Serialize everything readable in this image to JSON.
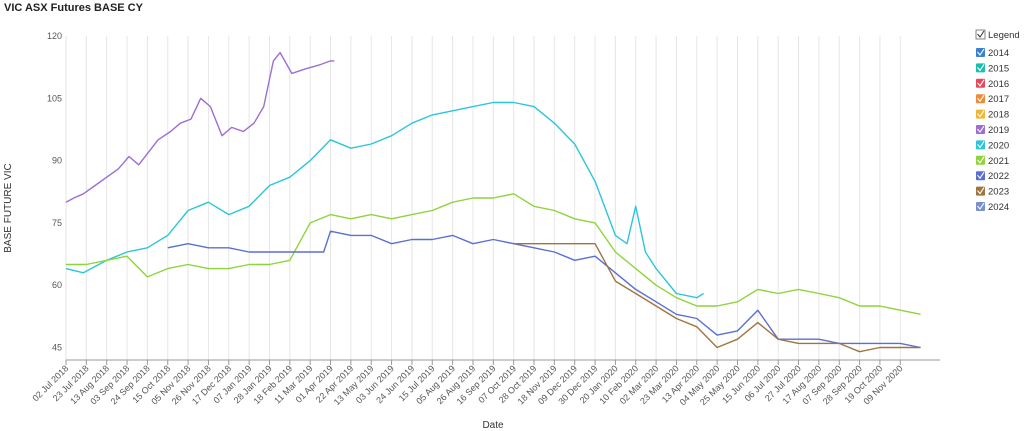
{
  "chart_data": {
    "type": "line",
    "title": "VIC ASX Futures BASE CY",
    "xlabel": "Date",
    "ylabel": "BASE FUTURE VIC",
    "xlim": [
      "2018-07-02",
      "2020-12-20"
    ],
    "ylim": [
      42,
      120
    ],
    "y_ticks": [
      45,
      60,
      75,
      90,
      105,
      120
    ],
    "x_tick_labels": [
      "02 Jul 2018",
      "23 Jul 2018",
      "13 Aug 2018",
      "03 Sep 2018",
      "24 Sep 2018",
      "15 Oct 2018",
      "05 Nov 2018",
      "26 Nov 2018",
      "17 Dec 2018",
      "07 Jan 2019",
      "28 Jan 2019",
      "18 Feb 2019",
      "11 Mar 2019",
      "01 Apr 2019",
      "22 Apr 2019",
      "13 May 2019",
      "03 Jun 2019",
      "24 Jun 2019",
      "15 Jul 2019",
      "05 Aug 2019",
      "26 Aug 2019",
      "16 Sep 2019",
      "07 Oct 2019",
      "28 Oct 2019",
      "18 Nov 2019",
      "09 Dec 2019",
      "30 Dec 2019",
      "20 Jan 2020",
      "10 Feb 2020",
      "02 Mar 2020",
      "23 Mar 2020",
      "13 Apr 2020",
      "04 May 2020",
      "25 May 2020",
      "15 Jun 2020",
      "06 Jul 2020",
      "27 Jul 2020",
      "17 Aug 2020",
      "07 Sep 2020",
      "28 Sep 2020",
      "19 Oct 2020",
      "09 Nov 2020"
    ],
    "x_tick_dates": [
      "2018-07-02",
      "2018-07-23",
      "2018-08-13",
      "2018-09-03",
      "2018-09-24",
      "2018-10-15",
      "2018-11-05",
      "2018-11-26",
      "2018-12-17",
      "2019-01-07",
      "2019-01-28",
      "2019-02-18",
      "2019-03-11",
      "2019-04-01",
      "2019-04-22",
      "2019-05-13",
      "2019-06-03",
      "2019-06-24",
      "2019-07-15",
      "2019-08-05",
      "2019-08-26",
      "2019-09-16",
      "2019-10-07",
      "2019-10-28",
      "2019-11-18",
      "2019-12-09",
      "2019-12-30",
      "2020-01-20",
      "2020-02-10",
      "2020-03-02",
      "2020-03-23",
      "2020-04-13",
      "2020-05-04",
      "2020-05-25",
      "2020-06-15",
      "2020-07-06",
      "2020-07-27",
      "2020-08-17",
      "2020-09-07",
      "2020-09-28",
      "2020-10-19",
      "2020-11-09"
    ],
    "grid": "vertical",
    "legend": {
      "title": "Legend",
      "placement": "right"
    },
    "series": [
      {
        "name": "2014",
        "color": "#3a7fd0",
        "x": [],
        "y": []
      },
      {
        "name": "2015",
        "color": "#1bbfb0",
        "x": [],
        "y": []
      },
      {
        "name": "2016",
        "color": "#e8485a",
        "x": [],
        "y": []
      },
      {
        "name": "2017",
        "color": "#f08a3c",
        "x": [],
        "y": []
      },
      {
        "name": "2018",
        "color": "#f2b632",
        "x": [],
        "y": []
      },
      {
        "name": "2019",
        "color": "#9b6fd1",
        "x": [
          "2018-07-02",
          "2018-07-10",
          "2018-07-20",
          "2018-08-01",
          "2018-08-13",
          "2018-08-25",
          "2018-09-05",
          "2018-09-15",
          "2018-09-25",
          "2018-10-05",
          "2018-10-18",
          "2018-10-28",
          "2018-11-08",
          "2018-11-18",
          "2018-11-28",
          "2018-12-10",
          "2018-12-20",
          "2019-01-01",
          "2019-01-12",
          "2019-01-22",
          "2019-02-01",
          "2019-02-08",
          "2019-02-20",
          "2019-03-05",
          "2019-03-20",
          "2019-04-01",
          "2019-04-05"
        ],
        "y": [
          80,
          81,
          82,
          84,
          86,
          88,
          91,
          89,
          92,
          95,
          97,
          99,
          100,
          105,
          103,
          96,
          98,
          97,
          99,
          103,
          114,
          116,
          111,
          112,
          113,
          114,
          114
        ]
      },
      {
        "name": "2020",
        "color": "#2cc6d8",
        "x": [
          "2018-07-02",
          "2018-07-20",
          "2018-08-13",
          "2018-09-03",
          "2018-09-24",
          "2018-10-15",
          "2018-11-05",
          "2018-11-26",
          "2018-12-17",
          "2019-01-07",
          "2019-01-28",
          "2019-02-18",
          "2019-03-11",
          "2019-04-01",
          "2019-04-22",
          "2019-05-13",
          "2019-06-03",
          "2019-06-24",
          "2019-07-15",
          "2019-08-05",
          "2019-08-26",
          "2019-09-16",
          "2019-10-07",
          "2019-10-28",
          "2019-11-18",
          "2019-12-09",
          "2019-12-30",
          "2020-01-20",
          "2020-02-01",
          "2020-02-10",
          "2020-02-20",
          "2020-03-02",
          "2020-03-23",
          "2020-04-13",
          "2020-04-20"
        ],
        "y": [
          64,
          63,
          66,
          68,
          69,
          72,
          78,
          80,
          77,
          79,
          84,
          86,
          90,
          95,
          93,
          94,
          96,
          99,
          101,
          102,
          103,
          104,
          104,
          103,
          99,
          94,
          85,
          72,
          70,
          79,
          68,
          64,
          58,
          57,
          58
        ]
      },
      {
        "name": "2021",
        "color": "#8ed43c",
        "x": [
          "2018-07-02",
          "2018-07-23",
          "2018-08-13",
          "2018-09-03",
          "2018-09-24",
          "2018-10-15",
          "2018-11-05",
          "2018-11-26",
          "2018-12-17",
          "2019-01-07",
          "2019-01-28",
          "2019-02-18",
          "2019-03-11",
          "2019-04-01",
          "2019-04-22",
          "2019-05-13",
          "2019-06-03",
          "2019-06-24",
          "2019-07-15",
          "2019-08-05",
          "2019-08-26",
          "2019-09-16",
          "2019-10-07",
          "2019-10-28",
          "2019-11-18",
          "2019-12-09",
          "2019-12-30",
          "2020-01-20",
          "2020-02-10",
          "2020-03-02",
          "2020-03-23",
          "2020-04-13",
          "2020-05-04",
          "2020-05-25",
          "2020-06-15",
          "2020-07-06",
          "2020-07-27",
          "2020-08-17",
          "2020-09-07",
          "2020-09-28",
          "2020-10-19",
          "2020-11-09",
          "2020-11-30"
        ],
        "y": [
          65,
          65,
          66,
          67,
          62,
          64,
          65,
          64,
          64,
          65,
          65,
          66,
          75,
          77,
          76,
          77,
          76,
          77,
          78,
          80,
          81,
          81,
          82,
          79,
          78,
          76,
          75,
          68,
          64,
          60,
          57,
          55,
          55,
          56,
          59,
          58,
          59,
          58,
          57,
          55,
          55,
          54,
          53
        ]
      },
      {
        "name": "2022",
        "color": "#5b6fd1",
        "x": [
          "2018-10-15",
          "2018-11-05",
          "2018-11-26",
          "2018-12-17",
          "2019-01-07",
          "2019-01-28",
          "2019-02-18",
          "2019-03-11",
          "2019-03-25",
          "2019-04-01",
          "2019-04-22",
          "2019-05-13",
          "2019-06-03",
          "2019-06-24",
          "2019-07-15",
          "2019-08-05",
          "2019-08-26",
          "2019-09-16",
          "2019-10-07",
          "2019-10-28",
          "2019-11-18",
          "2019-12-09",
          "2019-12-30",
          "2020-01-20",
          "2020-02-10",
          "2020-03-02",
          "2020-03-23",
          "2020-04-13",
          "2020-05-04",
          "2020-05-25",
          "2020-06-15",
          "2020-07-06",
          "2020-07-27",
          "2020-08-17",
          "2020-09-07",
          "2020-09-28",
          "2020-10-19",
          "2020-11-09",
          "2020-11-30"
        ],
        "y": [
          69,
          70,
          69,
          69,
          68,
          68,
          68,
          68,
          68,
          73,
          72,
          72,
          70,
          71,
          71,
          72,
          70,
          71,
          70,
          69,
          68,
          66,
          67,
          63,
          59,
          56,
          53,
          52,
          48,
          49,
          54,
          47,
          47,
          47,
          46,
          46,
          46,
          46,
          45
        ]
      },
      {
        "name": "2023",
        "color": "#a07440",
        "x": [
          "2019-10-07",
          "2019-10-28",
          "2019-11-18",
          "2019-12-09",
          "2019-12-30",
          "2020-01-20",
          "2020-02-10",
          "2020-03-02",
          "2020-03-23",
          "2020-04-13",
          "2020-05-04",
          "2020-05-25",
          "2020-06-15",
          "2020-07-06",
          "2020-07-27",
          "2020-08-17",
          "2020-09-07",
          "2020-09-28",
          "2020-10-19",
          "2020-11-09",
          "2020-11-30"
        ],
        "y": [
          70,
          70,
          70,
          70,
          70,
          61,
          58,
          55,
          52,
          50,
          45,
          47,
          51,
          47,
          46,
          46,
          46,
          44,
          45,
          45,
          45
        ]
      },
      {
        "name": "2024",
        "color": "#7a8fcf",
        "x": [],
        "y": []
      }
    ]
  }
}
